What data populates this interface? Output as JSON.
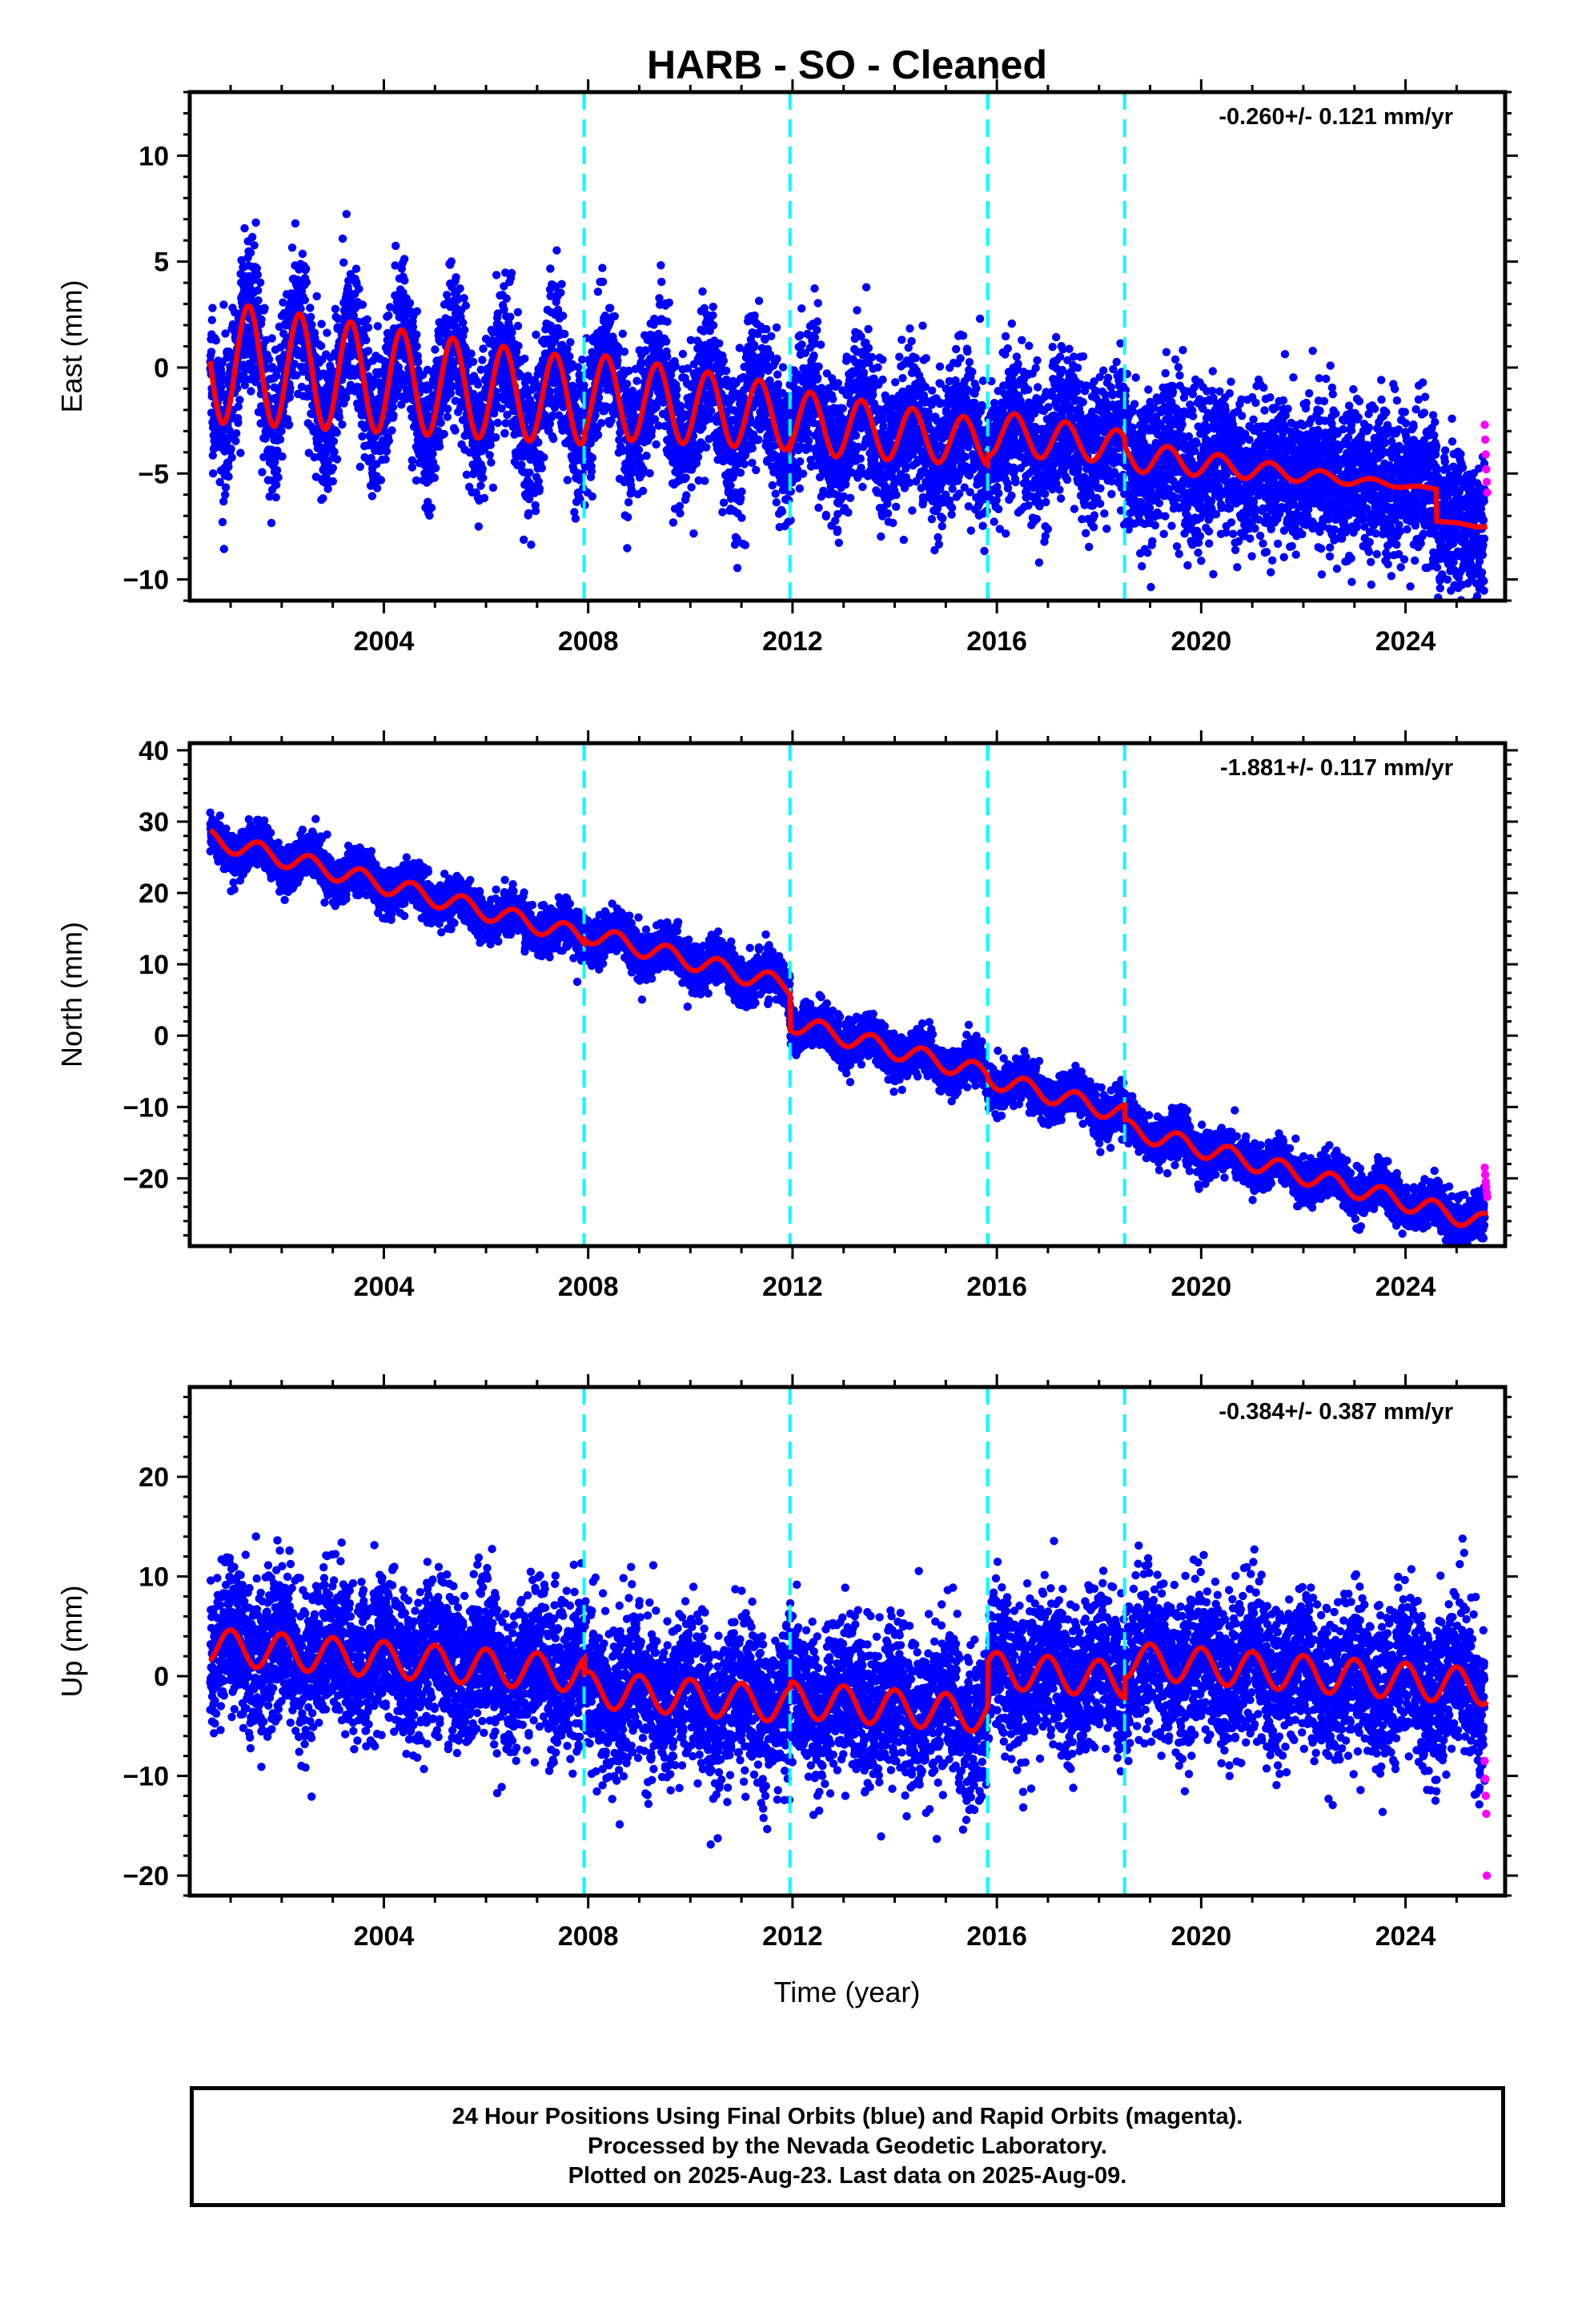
{
  "title": "HARB  - SO - Cleaned",
  "xlabel": "Time (year)",
  "x_tick_labels": [
    "2004",
    "2008",
    "2012",
    "2016",
    "2020",
    "2024"
  ],
  "colors": {
    "final_orbits": "#0000ff",
    "rapid_orbits": "#ff00ff",
    "model_fit": "#ff0000",
    "equipment_change": "#00ffff",
    "frame": "#000000"
  },
  "footer": {
    "line1": "24 Hour Positions Using Final Orbits (blue) and Rapid Orbits (magenta).",
    "line2": "Processed by the Nevada Geodetic Laboratory.",
    "line3": "Plotted on 2025-Aug-23. Last data on 2025-Aug-09."
  },
  "chart_data": [
    {
      "type": "scatter",
      "panel": "east",
      "ylabel": "East (mm)",
      "rate_text": "-0.260+/- 0.121 mm/yr",
      "xlim": [
        2000.2,
        2025.95
      ],
      "ylim": [
        -11,
        13
      ],
      "y_ticks": [
        10,
        5,
        0,
        -5,
        -10
      ],
      "x_ticks": [
        2004,
        2008,
        2012,
        2016,
        2020,
        2024
      ],
      "grid": false,
      "vertical_dashed_lines": [
        2007.92,
        2011.95,
        2015.82,
        2018.5
      ],
      "model": {
        "rate": -0.26,
        "start": 2000.6,
        "end": 2025.6,
        "offset": 0.3,
        "annual_amplitude": 2.9,
        "annual_phase_peak": 0.35,
        "amplitude_trend": -0.012,
        "steps": [
          {
            "at": 2007.92,
            "delta": 0.3
          },
          {
            "at": 2011.95,
            "delta": -0.2
          },
          {
            "at": 2015.82,
            "delta": 0.5
          },
          {
            "at": 2018.5,
            "delta": -0.4
          },
          {
            "at": 2024.6,
            "delta": -1.5
          }
        ]
      },
      "series": [
        {
          "name": "Final Orbits",
          "color": "#0000ff",
          "scatter_sd": 1.7,
          "n_points": 9000
        },
        {
          "name": "Rapid Orbits",
          "color": "#ff00ff",
          "x": [
            2025.55,
            2025.56,
            2025.57,
            2025.58,
            2025.59,
            2025.6
          ],
          "y": [
            -2.7,
            -3.4,
            -4.1,
            -4.8,
            -5.4,
            -5.9
          ]
        }
      ]
    },
    {
      "type": "scatter",
      "panel": "north",
      "ylabel": "North (mm)",
      "rate_text": "-1.881+/- 0.117 mm/yr",
      "xlim": [
        2000.2,
        2025.95
      ],
      "ylim": [
        -29.5,
        41
      ],
      "y_ticks": [
        40,
        30,
        20,
        10,
        0,
        -10,
        -20
      ],
      "x_ticks": [
        2004,
        2008,
        2012,
        2016,
        2020,
        2024
      ],
      "grid": false,
      "vertical_dashed_lines": [
        2007.92,
        2011.95,
        2015.82,
        2018.5
      ],
      "model": {
        "rate": -1.881,
        "start": 2000.6,
        "end": 2025.6,
        "offset": 27.6,
        "annual_amplitude": 1.3,
        "annual_phase_peak": 0.55,
        "amplitude_trend": 0,
        "steps": [
          {
            "at": 2007.92,
            "delta": 0.6
          },
          {
            "at": 2011.95,
            "delta": -5.0
          },
          {
            "at": 2015.82,
            "delta": -0.5
          },
          {
            "at": 2018.5,
            "delta": -2.0
          }
        ]
      },
      "series": [
        {
          "name": "Final Orbits",
          "color": "#0000ff",
          "scatter_sd": 1.5,
          "n_points": 9000
        },
        {
          "name": "Rapid Orbits",
          "color": "#ff00ff",
          "x": [
            2025.55,
            2025.56,
            2025.57,
            2025.58,
            2025.59,
            2025.6
          ],
          "y": [
            -18.5,
            -19.5,
            -20.5,
            -21.2,
            -22.0,
            -22.6
          ]
        }
      ]
    },
    {
      "type": "scatter",
      "panel": "up",
      "ylabel": "Up (mm)",
      "rate_text": "-0.384+/- 0.387 mm/yr",
      "xlim": [
        2000.2,
        2025.95
      ],
      "ylim": [
        -22,
        29
      ],
      "y_ticks": [
        20,
        10,
        0,
        -10,
        -20
      ],
      "x_ticks": [
        2004,
        2008,
        2012,
        2016,
        2020,
        2024
      ],
      "grid": false,
      "vertical_dashed_lines": [
        2007.92,
        2011.95,
        2015.82,
        2018.5
      ],
      "model": {
        "rate": -0.384,
        "start": 2000.6,
        "end": 2025.6,
        "offset": 3.0,
        "annual_amplitude": 1.8,
        "annual_phase_peak": 0.0,
        "amplitude_trend": 0,
        "steps": [
          {
            "at": 2007.92,
            "delta": -1.5
          },
          {
            "at": 2011.95,
            "delta": 0.5
          },
          {
            "at": 2015.82,
            "delta": 4.5
          },
          {
            "at": 2018.5,
            "delta": 2.0
          }
        ]
      },
      "series": [
        {
          "name": "Final Orbits",
          "color": "#0000ff",
          "scatter_sd": 3.8,
          "n_points": 9000
        },
        {
          "name": "Rapid Orbits",
          "color": "#ff00ff",
          "x": [
            2025.55,
            2025.56,
            2025.57,
            2025.58,
            2025.59
          ],
          "y": [
            -8.5,
            -10.3,
            -12.0,
            -13.8,
            -20.0
          ]
        }
      ]
    }
  ]
}
